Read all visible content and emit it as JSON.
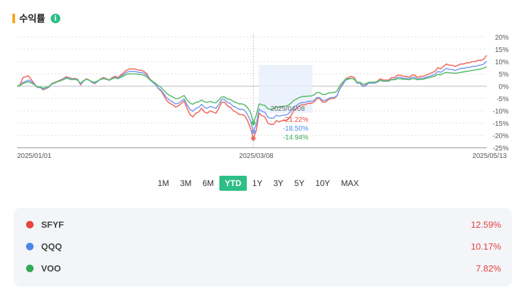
{
  "header": {
    "title": "수익률",
    "info_icon": "info-icon"
  },
  "chart_data": {
    "type": "line",
    "ylim": [
      -25,
      20
    ],
    "yticks": [
      "20%",
      "15%",
      "10%",
      "5%",
      "0%",
      "-5%",
      "-10%",
      "-15%",
      "-20%",
      "-25%"
    ],
    "ytick_values": [
      20,
      15,
      10,
      5,
      0,
      -5,
      -10,
      -15,
      -20,
      -25
    ],
    "xticks": [
      "2025/01/01",
      "2025/03/08",
      "2025/05/13"
    ],
    "grid": true,
    "tooltip": {
      "date": "2025/04/08",
      "values": [
        "-21.22%",
        "-18.50%",
        "-14.94%"
      ]
    },
    "series": [
      {
        "name": "SFYF",
        "color": "#f06a5e",
        "values": [
          0,
          0.5,
          3.5,
          3.8,
          4.2,
          2.5,
          1.0,
          -0.5,
          -0.5,
          -1.5,
          -1.0,
          -0.5,
          1.0,
          1.5,
          2.0,
          2.5,
          3.0,
          3.8,
          3.5,
          3.0,
          3.2,
          2.8,
          0.5,
          2.0,
          3.0,
          2.5,
          1.5,
          1.0,
          2.0,
          3.0,
          3.5,
          3.0,
          2.5,
          3.5,
          4.0,
          3.5,
          4.5,
          5.5,
          6.5,
          7.0,
          7.0,
          7.0,
          6.5,
          6.5,
          6.0,
          5.0,
          3.0,
          2.0,
          1.0,
          -1.0,
          -2.0,
          -4.0,
          -6.0,
          -7.0,
          -7.5,
          -8.5,
          -8.0,
          -7.0,
          -6.0,
          -9.0,
          -11.5,
          -12.5,
          -11.0,
          -10.5,
          -9.0,
          -10.5,
          -11.0,
          -10.0,
          -10.5,
          -11.0,
          -9.0,
          -6.5,
          -6.5,
          -8.0,
          -8.5,
          -10.0,
          -10.5,
          -11.5,
          -11.5,
          -12.0,
          -14.0,
          -17.0,
          -21.22,
          -18.0,
          -11.0,
          -12.0,
          -12.5,
          -15.0,
          -15.5,
          -15.5,
          -14.0,
          -14.5,
          -14.0,
          -14.0,
          -13.5,
          -12.0,
          -10.0,
          -9.0,
          -8.0,
          -7.5,
          -7.5,
          -7.0,
          -7.0,
          -6.5,
          -5.0,
          -5.0,
          -6.5,
          -6.5,
          -5.5,
          -5.0,
          -5.0,
          -4.0,
          -1.0,
          1.0,
          3.0,
          3.5,
          4.0,
          3.5,
          1.5,
          1.5,
          0.0,
          0.5,
          1.5,
          1.5,
          1.5,
          2.0,
          3.0,
          2.5,
          2.5,
          2.5,
          3.5,
          3.5,
          4.5,
          4.5,
          4.0,
          4.0,
          3.5,
          4.5,
          4.5,
          3.5,
          4.0,
          4.0,
          4.5,
          5.0,
          5.5,
          6.0,
          7.5,
          7.0,
          8.0,
          9.0,
          8.5,
          8.5,
          8.0,
          8.5,
          9.0,
          9.0,
          9.5,
          9.5,
          10.0,
          10.0,
          10.5,
          10.5,
          11.0,
          12.59
        ]
      },
      {
        "name": "QQQ",
        "color": "#7b9cf0",
        "values": [
          0,
          0.2,
          1.5,
          2.0,
          2.5,
          1.8,
          0.8,
          -0.5,
          -0.5,
          -1.2,
          -0.8,
          -0.4,
          0.8,
          1.2,
          1.8,
          2.2,
          2.8,
          3.5,
          3.2,
          2.8,
          3.0,
          2.6,
          0.8,
          2.0,
          2.8,
          2.4,
          1.6,
          1.2,
          2.0,
          2.8,
          3.2,
          2.8,
          2.4,
          3.2,
          3.6,
          3.2,
          4.0,
          4.8,
          5.6,
          6.0,
          6.0,
          6.0,
          5.6,
          5.6,
          5.2,
          4.4,
          2.6,
          1.6,
          0.6,
          -0.8,
          -1.6,
          -3.2,
          -4.8,
          -5.8,
          -6.4,
          -7.2,
          -7.0,
          -6.0,
          -5.2,
          -7.6,
          -9.4,
          -10.2,
          -9.0,
          -8.6,
          -7.4,
          -8.6,
          -9.0,
          -8.2,
          -8.6,
          -9.0,
          -7.4,
          -5.4,
          -5.4,
          -6.6,
          -7.0,
          -8.2,
          -8.6,
          -9.4,
          -9.4,
          -9.8,
          -11.6,
          -14.0,
          -18.5,
          -15.5,
          -9.4,
          -10.2,
          -10.6,
          -12.6,
          -13.0,
          -13.0,
          -11.8,
          -12.2,
          -11.8,
          -11.8,
          -11.4,
          -10.2,
          -8.6,
          -7.8,
          -7.0,
          -6.6,
          -6.6,
          -6.2,
          -6.2,
          -5.8,
          -4.6,
          -4.6,
          -5.8,
          -5.8,
          -5.0,
          -4.6,
          -4.6,
          -3.8,
          -1.2,
          0.6,
          2.4,
          2.8,
          3.2,
          2.8,
          1.2,
          1.2,
          -0.2,
          0.2,
          1.2,
          1.2,
          1.2,
          1.6,
          2.4,
          2.0,
          2.0,
          2.0,
          2.8,
          2.8,
          3.6,
          3.6,
          3.2,
          3.2,
          2.8,
          3.6,
          3.6,
          2.8,
          3.2,
          3.2,
          3.6,
          4.0,
          4.4,
          4.8,
          6.0,
          5.6,
          6.4,
          7.2,
          6.8,
          6.8,
          6.4,
          6.8,
          7.2,
          7.2,
          7.6,
          7.6,
          8.0,
          8.0,
          8.4,
          8.6,
          9.0,
          10.17
        ]
      },
      {
        "name": "VOO",
        "color": "#5bbd6e",
        "values": [
          0,
          0.3,
          1.0,
          1.5,
          1.8,
          1.2,
          0.6,
          -0.3,
          -0.3,
          -0.8,
          -0.5,
          -0.2,
          1.0,
          1.4,
          1.8,
          2.2,
          2.6,
          3.2,
          3.0,
          2.6,
          2.8,
          2.4,
          1.2,
          2.2,
          2.8,
          2.4,
          1.8,
          1.6,
          2.2,
          2.8,
          3.0,
          2.8,
          2.4,
          3.0,
          3.4,
          3.0,
          3.6,
          4.2,
          4.8,
          5.0,
          5.0,
          5.0,
          4.8,
          4.8,
          4.4,
          3.8,
          2.6,
          2.0,
          1.2,
          0.2,
          -0.6,
          -1.8,
          -3.0,
          -3.8,
          -4.4,
          -5.0,
          -5.0,
          -4.4,
          -3.8,
          -5.6,
          -6.8,
          -7.4,
          -6.6,
          -6.4,
          -5.6,
          -6.4,
          -6.6,
          -6.2,
          -6.6,
          -6.8,
          -5.6,
          -4.4,
          -4.4,
          -5.2,
          -5.4,
          -6.2,
          -6.6,
          -7.2,
          -7.2,
          -7.6,
          -8.8,
          -10.6,
          -14.94,
          -11.8,
          -7.2,
          -7.6,
          -7.8,
          -9.2,
          -9.4,
          -9.2,
          -8.4,
          -8.6,
          -8.2,
          -8.2,
          -7.8,
          -7.0,
          -5.8,
          -5.2,
          -4.6,
          -4.2,
          -4.2,
          -4.0,
          -4.0,
          -3.6,
          -2.6,
          -2.6,
          -3.4,
          -3.4,
          -2.8,
          -2.6,
          -2.6,
          -2.0,
          0.2,
          1.6,
          2.8,
          3.0,
          3.2,
          2.8,
          1.6,
          1.6,
          0.8,
          1.0,
          1.6,
          1.6,
          1.6,
          1.8,
          2.4,
          2.2,
          2.2,
          2.2,
          2.6,
          2.6,
          3.0,
          3.0,
          2.8,
          2.8,
          2.6,
          3.0,
          3.0,
          2.6,
          2.8,
          2.8,
          3.2,
          3.4,
          3.8,
          4.0,
          4.8,
          4.6,
          5.2,
          5.6,
          5.4,
          5.4,
          5.2,
          5.4,
          5.6,
          5.8,
          6.0,
          6.2,
          6.4,
          6.6,
          6.8,
          7.0,
          7.4,
          7.82
        ]
      }
    ]
  },
  "ranges": {
    "items": [
      "1M",
      "3M",
      "6M",
      "YTD",
      "1Y",
      "3Y",
      "5Y",
      "10Y",
      "MAX"
    ],
    "active": "YTD"
  },
  "legend": {
    "items": [
      {
        "name": "SFYF",
        "value": "12.59%",
        "color": "#e8453c"
      },
      {
        "name": "QQQ",
        "value": "10.17%",
        "color": "#4a86e8"
      },
      {
        "name": "VOO",
        "value": "7.82%",
        "color": "#34a853"
      }
    ]
  }
}
